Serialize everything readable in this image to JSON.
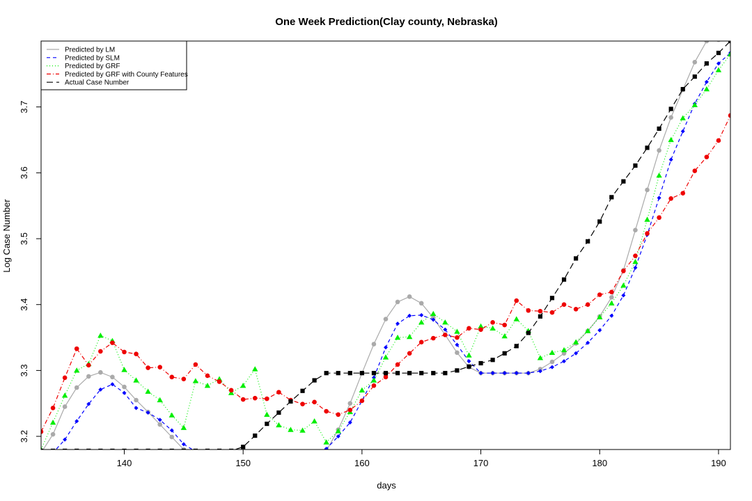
{
  "chart_data": {
    "type": "line",
    "title": "One Week Prediction(Clay county, Nebraska)",
    "xlabel": "days",
    "ylabel": "Log Case Number",
    "xlim": [
      133,
      191
    ],
    "ylim": [
      3.18,
      3.8
    ],
    "xticks": [
      140,
      150,
      160,
      170,
      180,
      190
    ],
    "yticks": [
      3.2,
      3.3,
      3.4,
      3.5,
      3.6,
      3.7
    ],
    "grid": false,
    "legend_position": "top-left",
    "x": [
      133,
      134,
      135,
      136,
      137,
      138,
      139,
      140,
      141,
      142,
      143,
      144,
      145,
      146,
      147,
      148,
      149,
      150,
      151,
      152,
      153,
      154,
      155,
      156,
      157,
      158,
      159,
      160,
      161,
      162,
      163,
      164,
      165,
      166,
      167,
      168,
      169,
      170,
      171,
      172,
      173,
      174,
      175,
      176,
      177,
      178,
      179,
      180,
      181,
      182,
      183,
      184,
      185,
      186,
      187,
      188,
      189,
      190,
      191
    ],
    "series": [
      {
        "name": "Predicted by LM",
        "color": "#aaaaaa",
        "dash": "none",
        "marker": "circle",
        "values": [
          3.175,
          3.203,
          3.245,
          3.274,
          3.291,
          3.297,
          3.29,
          3.275,
          3.255,
          3.237,
          3.218,
          3.199,
          3.18,
          3.17,
          3.165,
          3.162,
          3.165,
          3.17,
          3.172,
          3.172,
          3.171,
          3.17,
          3.17,
          3.17,
          3.178,
          3.21,
          3.25,
          3.296,
          3.34,
          3.378,
          3.404,
          3.412,
          3.402,
          3.38,
          3.354,
          3.327,
          3.305,
          3.296,
          3.296,
          3.296,
          3.296,
          3.296,
          3.302,
          3.313,
          3.326,
          3.341,
          3.36,
          3.382,
          3.411,
          3.452,
          3.513,
          3.574,
          3.634,
          3.684,
          3.726,
          3.768,
          3.8,
          3.802,
          3.805
        ]
      },
      {
        "name": "Predicted by SLM",
        "color": "#0000ff",
        "dash": "5,4",
        "marker": "diamond",
        "values": [
          3.165,
          3.175,
          3.195,
          3.223,
          3.249,
          3.271,
          3.279,
          3.266,
          3.243,
          3.236,
          3.225,
          3.209,
          3.188,
          3.177,
          3.177,
          3.177,
          3.177,
          3.177,
          3.177,
          3.177,
          3.177,
          3.177,
          3.177,
          3.177,
          3.181,
          3.2,
          3.221,
          3.254,
          3.289,
          3.335,
          3.371,
          3.383,
          3.384,
          3.377,
          3.362,
          3.339,
          3.314,
          3.296,
          3.296,
          3.296,
          3.296,
          3.296,
          3.299,
          3.305,
          3.314,
          3.326,
          3.342,
          3.361,
          3.383,
          3.414,
          3.456,
          3.506,
          3.562,
          3.62,
          3.663,
          3.705,
          3.738,
          3.766,
          3.782
        ]
      },
      {
        "name": "Predicted by GRF",
        "color": "#00ee00",
        "dash": "1,3",
        "marker": "triangle",
        "values": [
          3.18,
          3.221,
          3.262,
          3.3,
          3.31,
          3.353,
          3.345,
          3.301,
          3.285,
          3.268,
          3.255,
          3.232,
          3.213,
          3.284,
          3.277,
          3.287,
          3.266,
          3.277,
          3.302,
          3.233,
          3.217,
          3.21,
          3.209,
          3.223,
          3.191,
          3.208,
          3.237,
          3.27,
          3.285,
          3.32,
          3.35,
          3.351,
          3.373,
          3.386,
          3.373,
          3.359,
          3.323,
          3.367,
          3.364,
          3.352,
          3.378,
          3.36,
          3.319,
          3.327,
          3.331,
          3.343,
          3.36,
          3.381,
          3.402,
          3.429,
          3.465,
          3.529,
          3.596,
          3.65,
          3.683,
          3.703,
          3.727,
          3.756,
          3.78
        ]
      },
      {
        "name": "Predicted by GRF with County Features",
        "color": "#ee0000",
        "dash": "6,3,1,3",
        "marker": "circle",
        "values": [
          3.207,
          3.243,
          3.289,
          3.333,
          3.308,
          3.329,
          3.342,
          3.328,
          3.325,
          3.304,
          3.305,
          3.29,
          3.287,
          3.309,
          3.292,
          3.283,
          3.27,
          3.256,
          3.258,
          3.257,
          3.267,
          3.255,
          3.249,
          3.252,
          3.238,
          3.233,
          3.24,
          3.254,
          3.277,
          3.29,
          3.309,
          3.326,
          3.343,
          3.349,
          3.354,
          3.35,
          3.364,
          3.362,
          3.373,
          3.369,
          3.406,
          3.391,
          3.39,
          3.388,
          3.4,
          3.393,
          3.4,
          3.415,
          3.419,
          3.451,
          3.474,
          3.508,
          3.532,
          3.561,
          3.569,
          3.603,
          3.624,
          3.649,
          3.687
        ]
      },
      {
        "name": "Actual Case Number",
        "color": "#000000",
        "dash": "9,5",
        "marker": "square",
        "values": [
          3.178,
          3.178,
          3.178,
          3.178,
          3.178,
          3.178,
          3.178,
          3.178,
          3.178,
          3.178,
          3.178,
          3.178,
          3.178,
          3.178,
          3.178,
          3.178,
          3.178,
          3.184,
          3.201,
          3.219,
          3.236,
          3.253,
          3.269,
          3.285,
          3.296,
          3.296,
          3.296,
          3.296,
          3.296,
          3.296,
          3.296,
          3.296,
          3.296,
          3.296,
          3.296,
          3.3,
          3.306,
          3.311,
          3.316,
          3.326,
          3.337,
          3.357,
          3.382,
          3.41,
          3.438,
          3.47,
          3.496,
          3.526,
          3.563,
          3.587,
          3.611,
          3.638,
          3.667,
          3.697,
          3.727,
          3.746,
          3.766,
          3.782,
          3.8
        ]
      }
    ]
  }
}
